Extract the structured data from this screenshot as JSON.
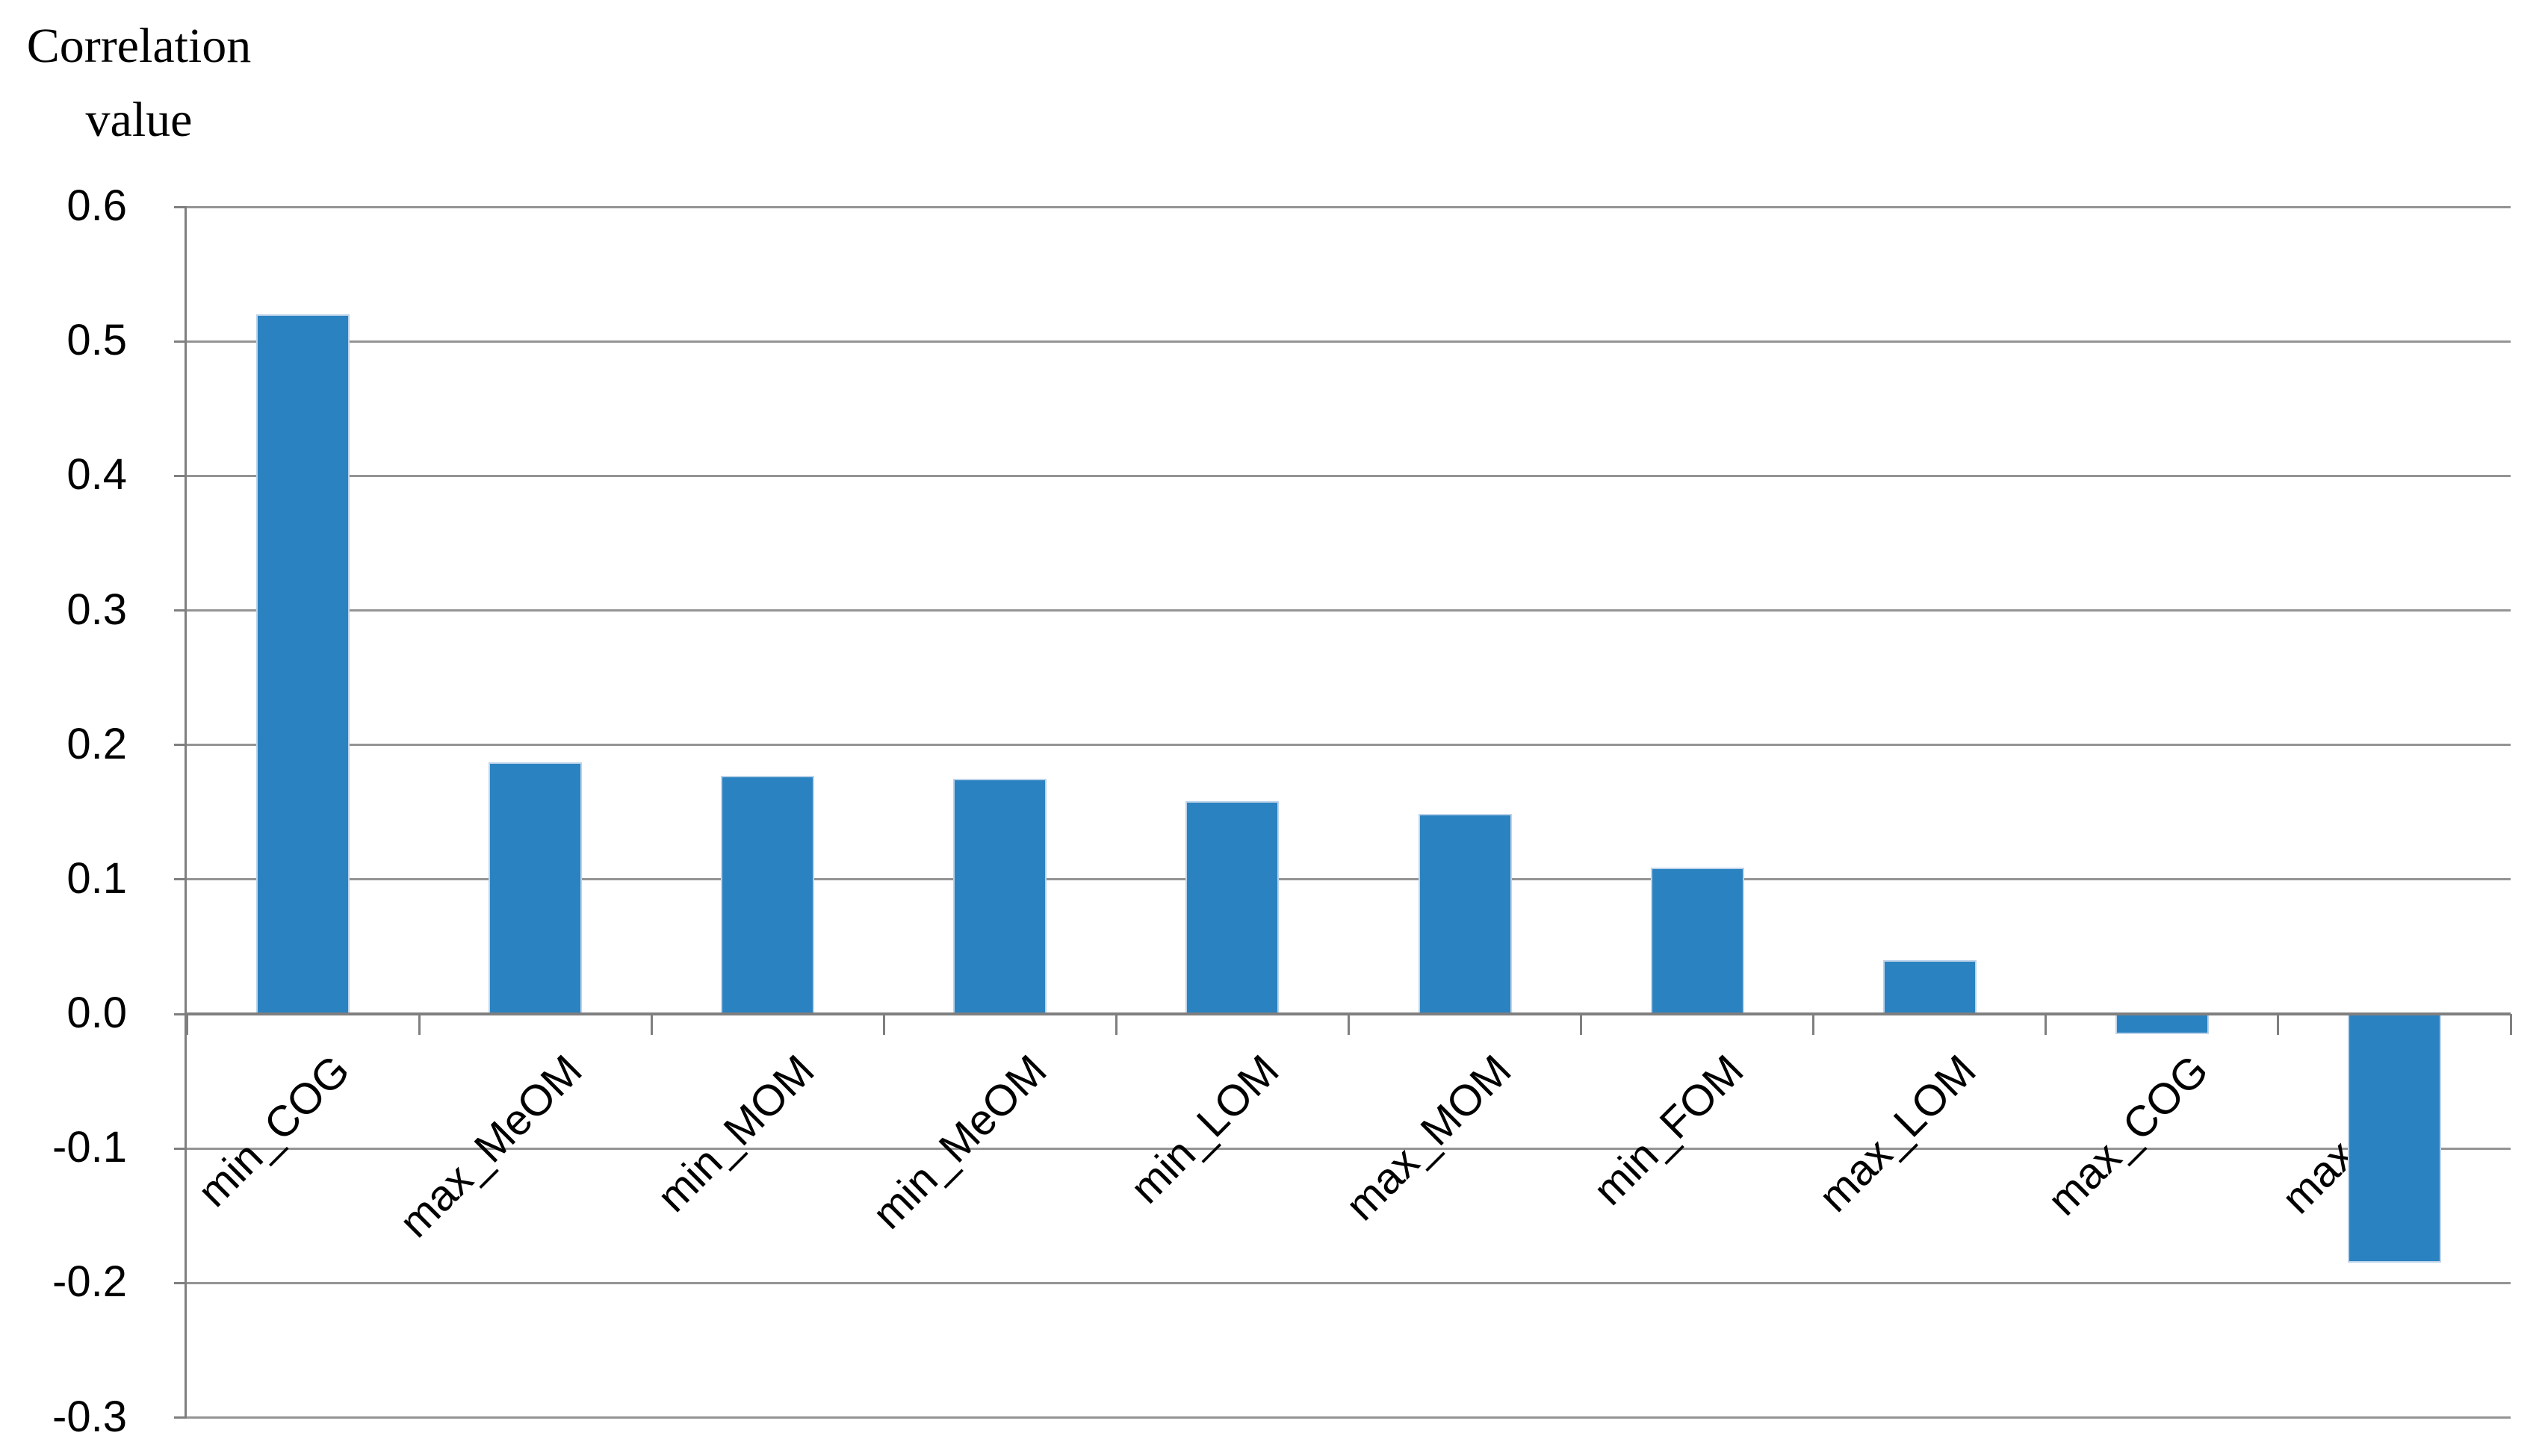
{
  "title": {
    "line1": "Correlation",
    "line2": "value"
  },
  "chart_data": {
    "type": "bar",
    "title": "Correlation value",
    "categories": [
      "min_COG",
      "max_MeOM",
      "min_MOM",
      "min_MeOM",
      "min_LOM",
      "max_MOM",
      "min_FOM",
      "max_LOM",
      "max_COG",
      "max_FOM"
    ],
    "values": [
      0.52,
      0.187,
      0.177,
      0.175,
      0.158,
      0.149,
      0.109,
      0.04,
      -0.015,
      -0.185
    ],
    "xlabel": "",
    "ylabel": "Correlation value",
    "ylim": [
      -0.3,
      0.6
    ],
    "ytick_labels": [
      "0.6",
      "0.5",
      "0.4",
      "0.3",
      "0.2",
      "0.1",
      "0.0",
      "-0.1",
      "-0.2",
      "-0.3"
    ],
    "grid": true,
    "legend": "none",
    "colors": {
      "bar_fill": "#2a82c1",
      "bar_edge": "#bdd3e9",
      "gridline": "#949494",
      "axis": "#7f7f7f",
      "text": "#000000",
      "background": "#ffffff"
    }
  }
}
